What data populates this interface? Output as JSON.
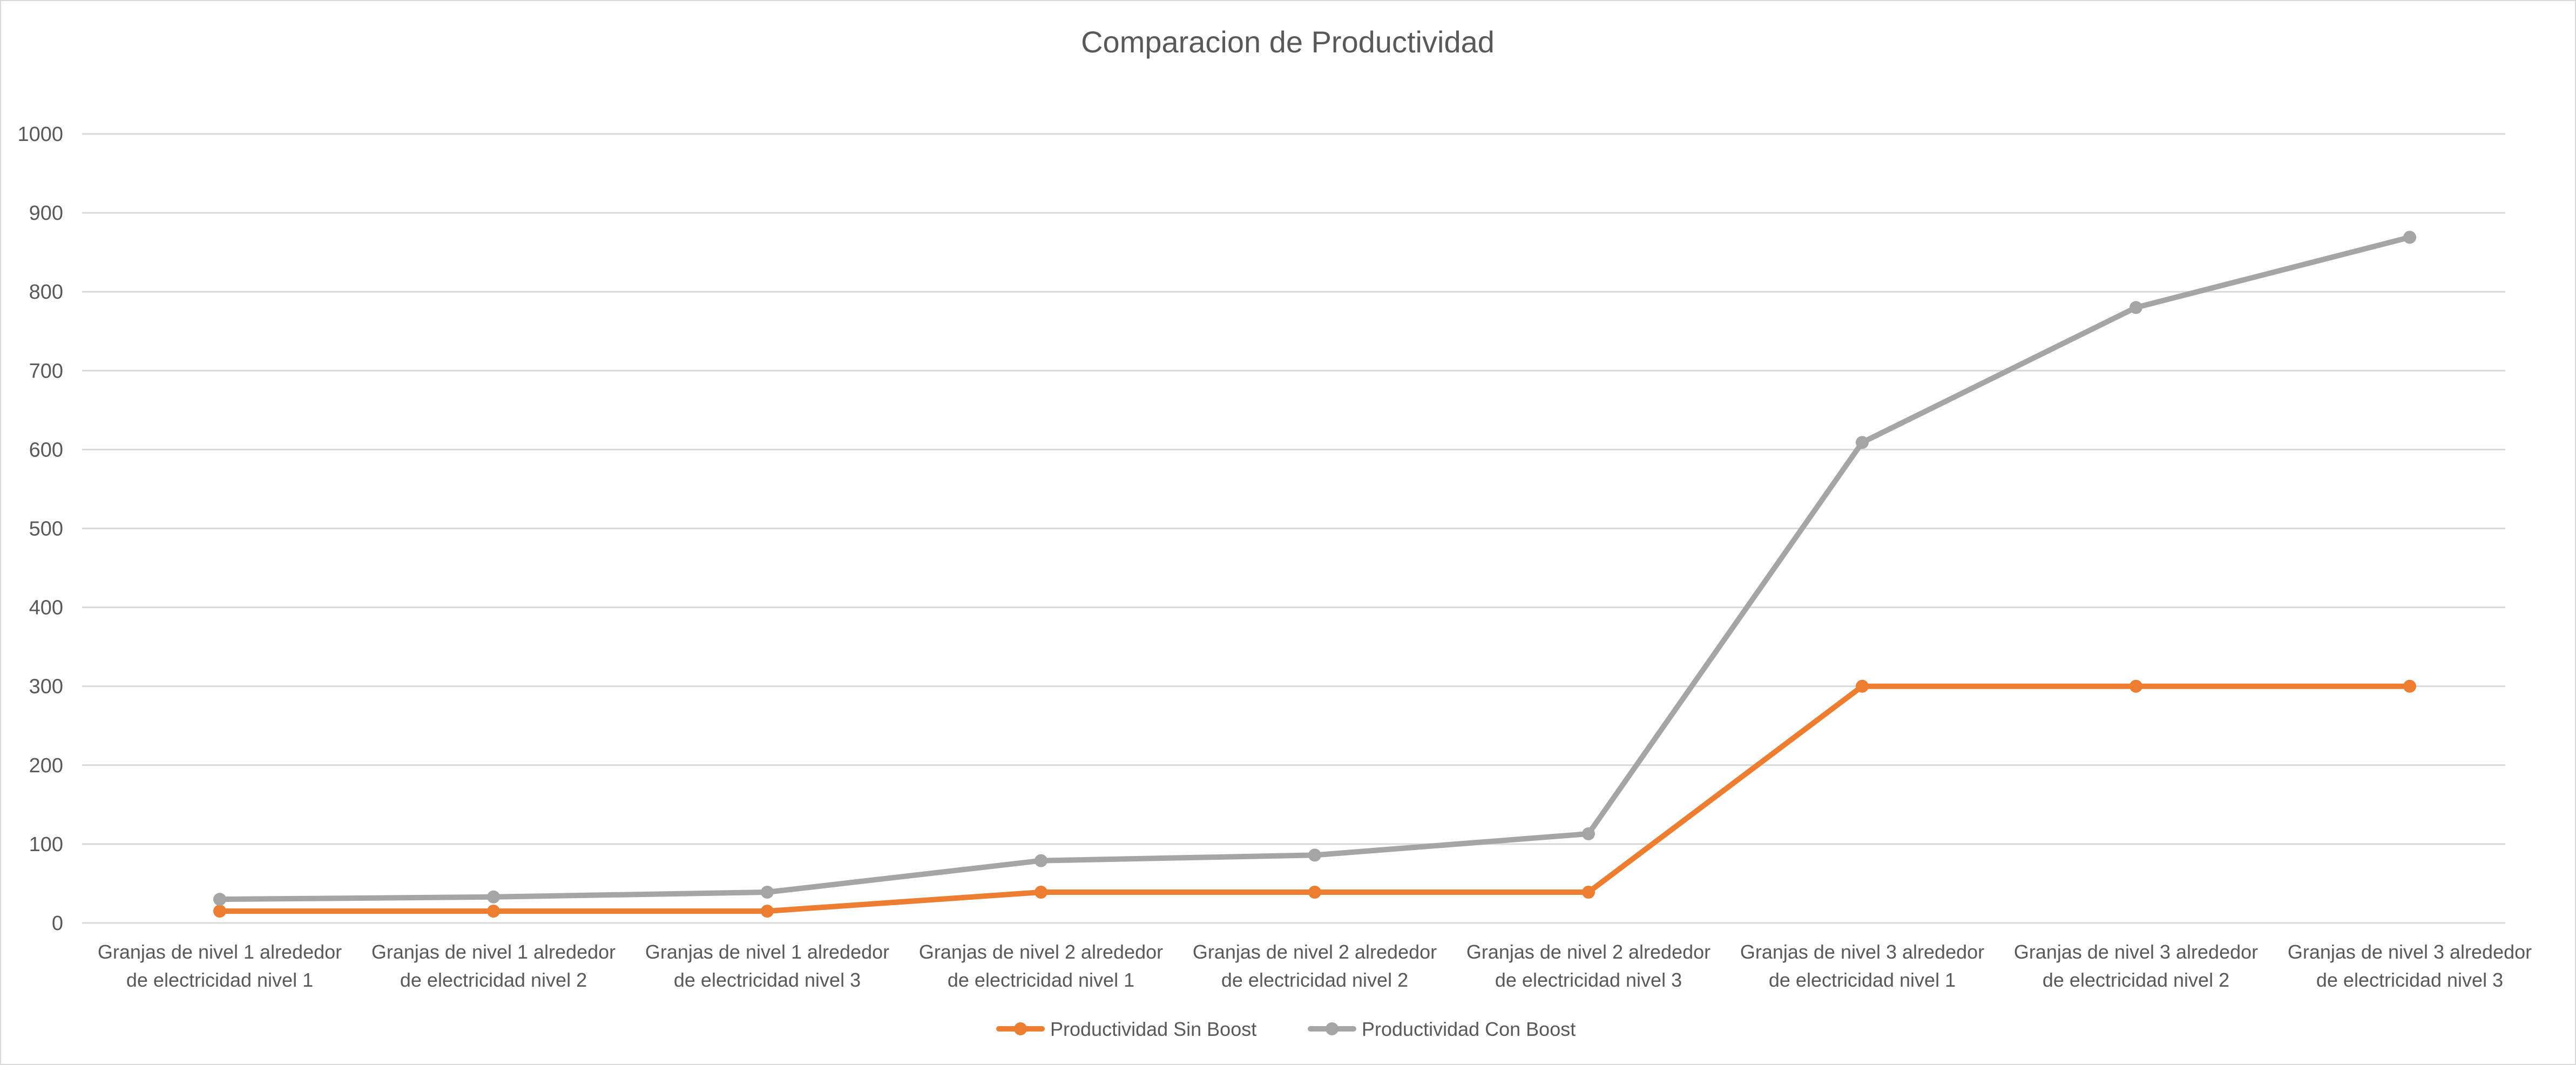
{
  "chart_data": {
    "type": "line",
    "title": "Comparacion de Productividad",
    "xlabel": "",
    "ylabel": "",
    "ylim": [
      0,
      1000
    ],
    "y_ticks": [
      0,
      100,
      200,
      300,
      400,
      500,
      600,
      700,
      800,
      900,
      1000
    ],
    "grid": true,
    "legend_position": "bottom",
    "categories": [
      [
        "Granjas de nivel 1 alrededor",
        "de electricidad nivel 1"
      ],
      [
        "Granjas de nivel 1 alrededor",
        "de electricidad nivel 2"
      ],
      [
        "Granjas de nivel 1 alrededor",
        "de electricidad nivel 3"
      ],
      [
        "Granjas de nivel 2 alrededor",
        "de electricidad nivel 1"
      ],
      [
        "Granjas de nivel 2 alrededor",
        "de electricidad nivel 2"
      ],
      [
        "Granjas de nivel 2 alrededor",
        "de electricidad nivel 3"
      ],
      [
        "Granjas de nivel 3 alrededor",
        "de electricidad nivel 1"
      ],
      [
        "Granjas de nivel 3 alrededor",
        "de electricidad nivel 2"
      ],
      [
        "Granjas de nivel 3 alrededor",
        "de electricidad nivel 3"
      ]
    ],
    "series": [
      {
        "name": "Productividad Sin Boost",
        "color": "#ed7d31",
        "values": [
          15,
          15,
          15,
          39,
          39,
          39,
          300,
          300,
          300
        ]
      },
      {
        "name": "Productividad Con Boost",
        "color": "#a5a5a5",
        "values": [
          30,
          33,
          39,
          79,
          86,
          113,
          609,
          780,
          869
        ]
      }
    ]
  }
}
